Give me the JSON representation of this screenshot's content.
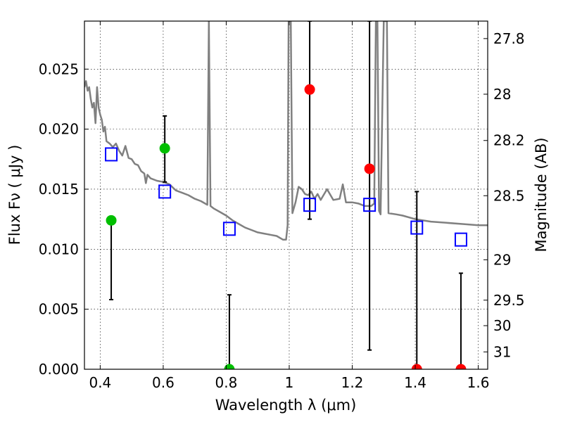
{
  "chart_data": {
    "type": "scatter",
    "xlabel": "Wavelength  λ (μm)",
    "ylabel": "Flux  Fν  ( μJy )",
    "y2label": "Magnitude (AB)",
    "xlim": [
      0.35,
      1.63
    ],
    "ylim": [
      0.0,
      0.029
    ],
    "grid": true,
    "x_ticks": [
      0.4,
      0.6,
      0.8,
      1.0,
      1.2,
      1.4,
      1.6
    ],
    "x_tick_labels": [
      "0.4",
      "0.6",
      "0.8",
      "1",
      "1.2",
      "1.4",
      "1.6"
    ],
    "y_ticks": [
      0.0,
      0.005,
      0.01,
      0.015,
      0.02,
      0.025
    ],
    "y_tick_labels": [
      "0.000",
      "0.005",
      "0.010",
      "0.015",
      "0.020",
      "0.025"
    ],
    "y2_ticks": [
      {
        "mag": 27.8,
        "label": "27.8"
      },
      {
        "mag": 28.0,
        "label": "28"
      },
      {
        "mag": 28.2,
        "label": "28.2"
      },
      {
        "mag": 28.5,
        "label": "28.5"
      },
      {
        "mag": 29.0,
        "label": "29"
      },
      {
        "mag": 29.5,
        "label": "29.5"
      },
      {
        "mag": 30.0,
        "label": "30"
      },
      {
        "mag": 31.0,
        "label": "31"
      }
    ],
    "model_spectrum": {
      "color": "#808080",
      "points": [
        [
          0.35,
          0.0235
        ],
        [
          0.355,
          0.024
        ],
        [
          0.36,
          0.0232
        ],
        [
          0.365,
          0.0235
        ],
        [
          0.37,
          0.0225
        ],
        [
          0.375,
          0.0218
        ],
        [
          0.38,
          0.0222
        ],
        [
          0.385,
          0.0205
        ],
        [
          0.39,
          0.0235
        ],
        [
          0.395,
          0.0218
        ],
        [
          0.4,
          0.0212
        ],
        [
          0.405,
          0.0208
        ],
        [
          0.41,
          0.0198
        ],
        [
          0.415,
          0.0202
        ],
        [
          0.42,
          0.019
        ],
        [
          0.43,
          0.0188
        ],
        [
          0.44,
          0.0185
        ],
        [
          0.45,
          0.0188
        ],
        [
          0.46,
          0.0182
        ],
        [
          0.47,
          0.0178
        ],
        [
          0.48,
          0.0186
        ],
        [
          0.49,
          0.0176
        ],
        [
          0.5,
          0.0175
        ],
        [
          0.51,
          0.0171
        ],
        [
          0.52,
          0.017
        ],
        [
          0.53,
          0.0165
        ],
        [
          0.54,
          0.0163
        ],
        [
          0.545,
          0.0155
        ],
        [
          0.55,
          0.0162
        ],
        [
          0.56,
          0.0159
        ],
        [
          0.58,
          0.0157
        ],
        [
          0.6,
          0.0156
        ],
        [
          0.62,
          0.0154
        ],
        [
          0.64,
          0.0149
        ],
        [
          0.66,
          0.0147
        ],
        [
          0.68,
          0.0145
        ],
        [
          0.7,
          0.0142
        ],
        [
          0.72,
          0.014
        ],
        [
          0.74,
          0.0137
        ],
        [
          0.745,
          0.029
        ],
        [
          0.75,
          0.0136
        ],
        [
          0.76,
          0.0134
        ],
        [
          0.78,
          0.0131
        ],
        [
          0.8,
          0.0128
        ],
        [
          0.82,
          0.0124
        ],
        [
          0.84,
          0.0121
        ],
        [
          0.86,
          0.0118
        ],
        [
          0.88,
          0.0116
        ],
        [
          0.9,
          0.0114
        ],
        [
          0.92,
          0.0113
        ],
        [
          0.94,
          0.0112
        ],
        [
          0.96,
          0.0111
        ],
        [
          0.98,
          0.0108
        ],
        [
          0.99,
          0.0108
        ],
        [
          0.995,
          0.012
        ],
        [
          0.998,
          0.029
        ],
        [
          1.005,
          0.029
        ],
        [
          1.01,
          0.013
        ],
        [
          1.02,
          0.0139
        ],
        [
          1.03,
          0.0152
        ],
        [
          1.04,
          0.015
        ],
        [
          1.05,
          0.0146
        ],
        [
          1.06,
          0.0145
        ],
        [
          1.07,
          0.0148
        ],
        [
          1.08,
          0.0142
        ],
        [
          1.09,
          0.0146
        ],
        [
          1.1,
          0.0141
        ],
        [
          1.12,
          0.015
        ],
        [
          1.14,
          0.0141
        ],
        [
          1.16,
          0.0142
        ],
        [
          1.17,
          0.0154
        ],
        [
          1.18,
          0.0139
        ],
        [
          1.2,
          0.0139
        ],
        [
          1.22,
          0.0138
        ],
        [
          1.24,
          0.0136
        ],
        [
          1.26,
          0.0136
        ],
        [
          1.27,
          0.0138
        ],
        [
          1.275,
          0.029
        ],
        [
          1.28,
          0.029
        ],
        [
          1.285,
          0.0132
        ],
        [
          1.29,
          0.0129
        ],
        [
          1.3,
          0.029
        ],
        [
          1.31,
          0.029
        ],
        [
          1.315,
          0.013
        ],
        [
          1.34,
          0.0129
        ],
        [
          1.36,
          0.0128
        ],
        [
          1.4,
          0.0125
        ],
        [
          1.45,
          0.0123
        ],
        [
          1.5,
          0.0122
        ],
        [
          1.55,
          0.0121
        ],
        [
          1.6,
          0.012
        ],
        [
          1.63,
          0.012
        ]
      ]
    },
    "series": [
      {
        "marker": "circle-green",
        "color": "#00bf00",
        "points": [
          {
            "x": 0.435,
            "y": 0.0124,
            "y_err_low": 0.0058,
            "y_err_high": 0.0124
          },
          {
            "x": 0.605,
            "y": 0.0184,
            "y_err_low": 0.0156,
            "y_err_high": 0.0211
          },
          {
            "x": 0.81,
            "y": 0.0,
            "y_err_low": 0.0,
            "y_err_high": 0.0062
          }
        ]
      },
      {
        "marker": "circle-red",
        "color": "#ff0000",
        "points": [
          {
            "x": 1.065,
            "y": 0.0233,
            "y_err_low": 0.0125,
            "y_err_high": 0.029
          },
          {
            "x": 1.255,
            "y": 0.0167,
            "y_err_low": 0.0016,
            "y_err_high": 0.029
          },
          {
            "x": 1.405,
            "y": 0.0,
            "y_err_low": 0.0,
            "y_err_high": 0.0148
          },
          {
            "x": 1.545,
            "y": 0.0,
            "y_err_low": 0.0,
            "y_err_high": 0.008
          }
        ]
      },
      {
        "marker": "open-square-blue",
        "color": "#0000ff",
        "points": [
          {
            "x": 0.435,
            "y": 0.0179
          },
          {
            "x": 0.605,
            "y": 0.0148
          },
          {
            "x": 0.81,
            "y": 0.0117
          },
          {
            "x": 1.065,
            "y": 0.0137
          },
          {
            "x": 1.255,
            "y": 0.0137
          },
          {
            "x": 1.405,
            "y": 0.0118
          },
          {
            "x": 1.545,
            "y": 0.0108
          }
        ]
      }
    ]
  }
}
